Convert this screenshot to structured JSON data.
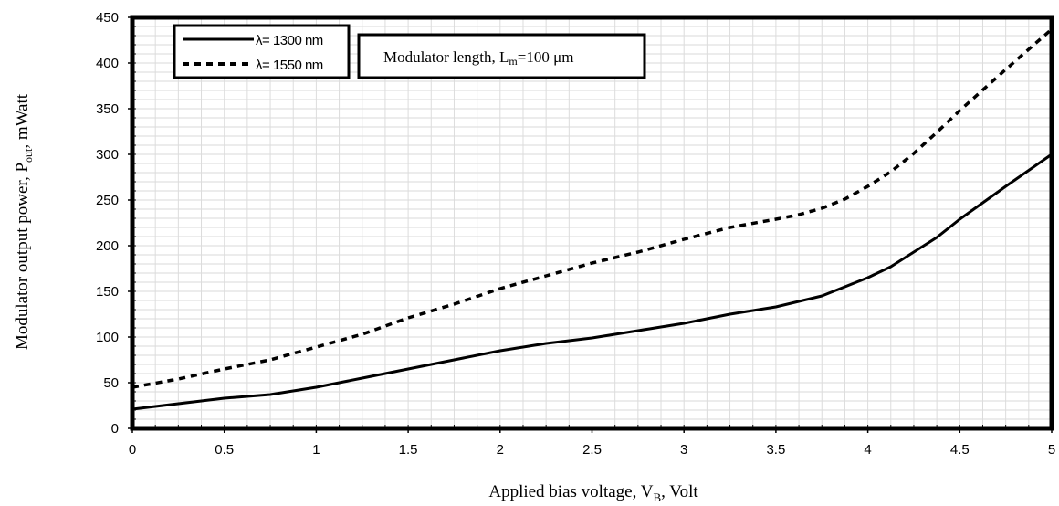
{
  "chart_data": {
    "type": "line",
    "xlabel": {
      "main": "Applied bias voltage, V",
      "sub": "B",
      "tail": ", Volt"
    },
    "ylabel": {
      "main": "Modulator output power, P",
      "sub": "out",
      "tail": ", mWatt"
    },
    "xlim": [
      0,
      5
    ],
    "ylim": [
      0,
      450
    ],
    "xticks": [
      "0",
      "0.5",
      "1",
      "1.5",
      "2",
      "2.5",
      "3",
      "3.5",
      "4",
      "4.5",
      "5"
    ],
    "yticks": [
      "0",
      "50",
      "100",
      "150",
      "200",
      "250",
      "300",
      "350",
      "400",
      "450"
    ],
    "grid": true,
    "legend_position": "top-left",
    "series": [
      {
        "name": "λ= 1300 nm",
        "style": "solid",
        "x": [
          0,
          0.25,
          0.5,
          0.75,
          1,
          1.25,
          1.5,
          1.75,
          2,
          2.25,
          2.5,
          2.75,
          3,
          3.25,
          3.5,
          3.75,
          4,
          4.125,
          4.25,
          4.375,
          4.5,
          4.75,
          5
        ],
        "y": [
          21,
          27,
          33,
          37,
          45,
          55,
          65,
          75,
          85,
          93,
          99,
          107,
          115,
          125,
          133,
          145,
          165,
          177,
          193,
          209,
          229,
          265,
          300
        ]
      },
      {
        "name": "λ= 1550 nm",
        "style": "dashed",
        "x": [
          0,
          0.25,
          0.5,
          0.75,
          1,
          1.25,
          1.5,
          1.75,
          2,
          2.25,
          2.5,
          2.75,
          3,
          3.25,
          3.5,
          3.625,
          3.75,
          3.875,
          4,
          4.125,
          4.25,
          4.375,
          4.5,
          4.75,
          5
        ],
        "y": [
          45,
          54,
          65,
          75,
          89,
          103,
          121,
          136,
          153,
          167,
          181,
          193,
          207,
          220,
          229,
          234,
          241,
          251,
          265,
          281,
          301,
          324,
          348,
          393,
          437
        ]
      }
    ],
    "annotation": {
      "main": "Modulator length, L",
      "sub": "m",
      "tail": "=100 μm"
    }
  }
}
